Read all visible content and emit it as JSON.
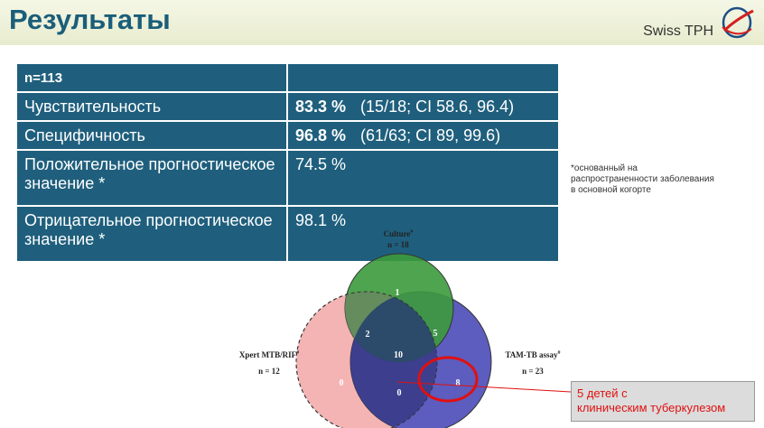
{
  "header": {
    "title": "Результаты",
    "brand": "Swiss TPH"
  },
  "table": {
    "header_label": "n=113",
    "rows": [
      {
        "label": "Чувствительность",
        "value": "83.3 %",
        "detail": "(15/18; CI 58.6, 96.4)"
      },
      {
        "label": "Специфичность",
        "value": "96.8 %",
        "detail": "(61/63; CI 89, 99.6)"
      },
      {
        "label": "Положительное прогностическое значение *",
        "value": "74.5 %",
        "detail": ""
      },
      {
        "label": "Отрицательное прогностическое значение *",
        "value": "98.1 %",
        "detail": ""
      }
    ]
  },
  "footnote": "*основанный на распространенности заболевания в основной когорте",
  "venn": {
    "culture": {
      "name": "Culture",
      "marker": "#",
      "n_label": "n = 18"
    },
    "xpert": {
      "name": "Xpert MTB/RIF",
      "marker": "#",
      "n_label": "n = 12"
    },
    "tam": {
      "name": "TAM-TB assay",
      "marker": "#",
      "n_label": "n = 23"
    },
    "regions": {
      "culture_only": "1",
      "culture_xpert": "2",
      "culture_tam": "5",
      "all_three": "10",
      "xpert_only": "0",
      "xpert_tam": "0",
      "tam_only": "8"
    },
    "colors": {
      "culture": "#3c9a3c",
      "xpert": "#f4b4b4",
      "tam": "#4e4fb8",
      "callout_line": "#e01010"
    }
  },
  "callout": {
    "line1": "5 детей с",
    "line2": "клиническим  туберкулезом"
  }
}
